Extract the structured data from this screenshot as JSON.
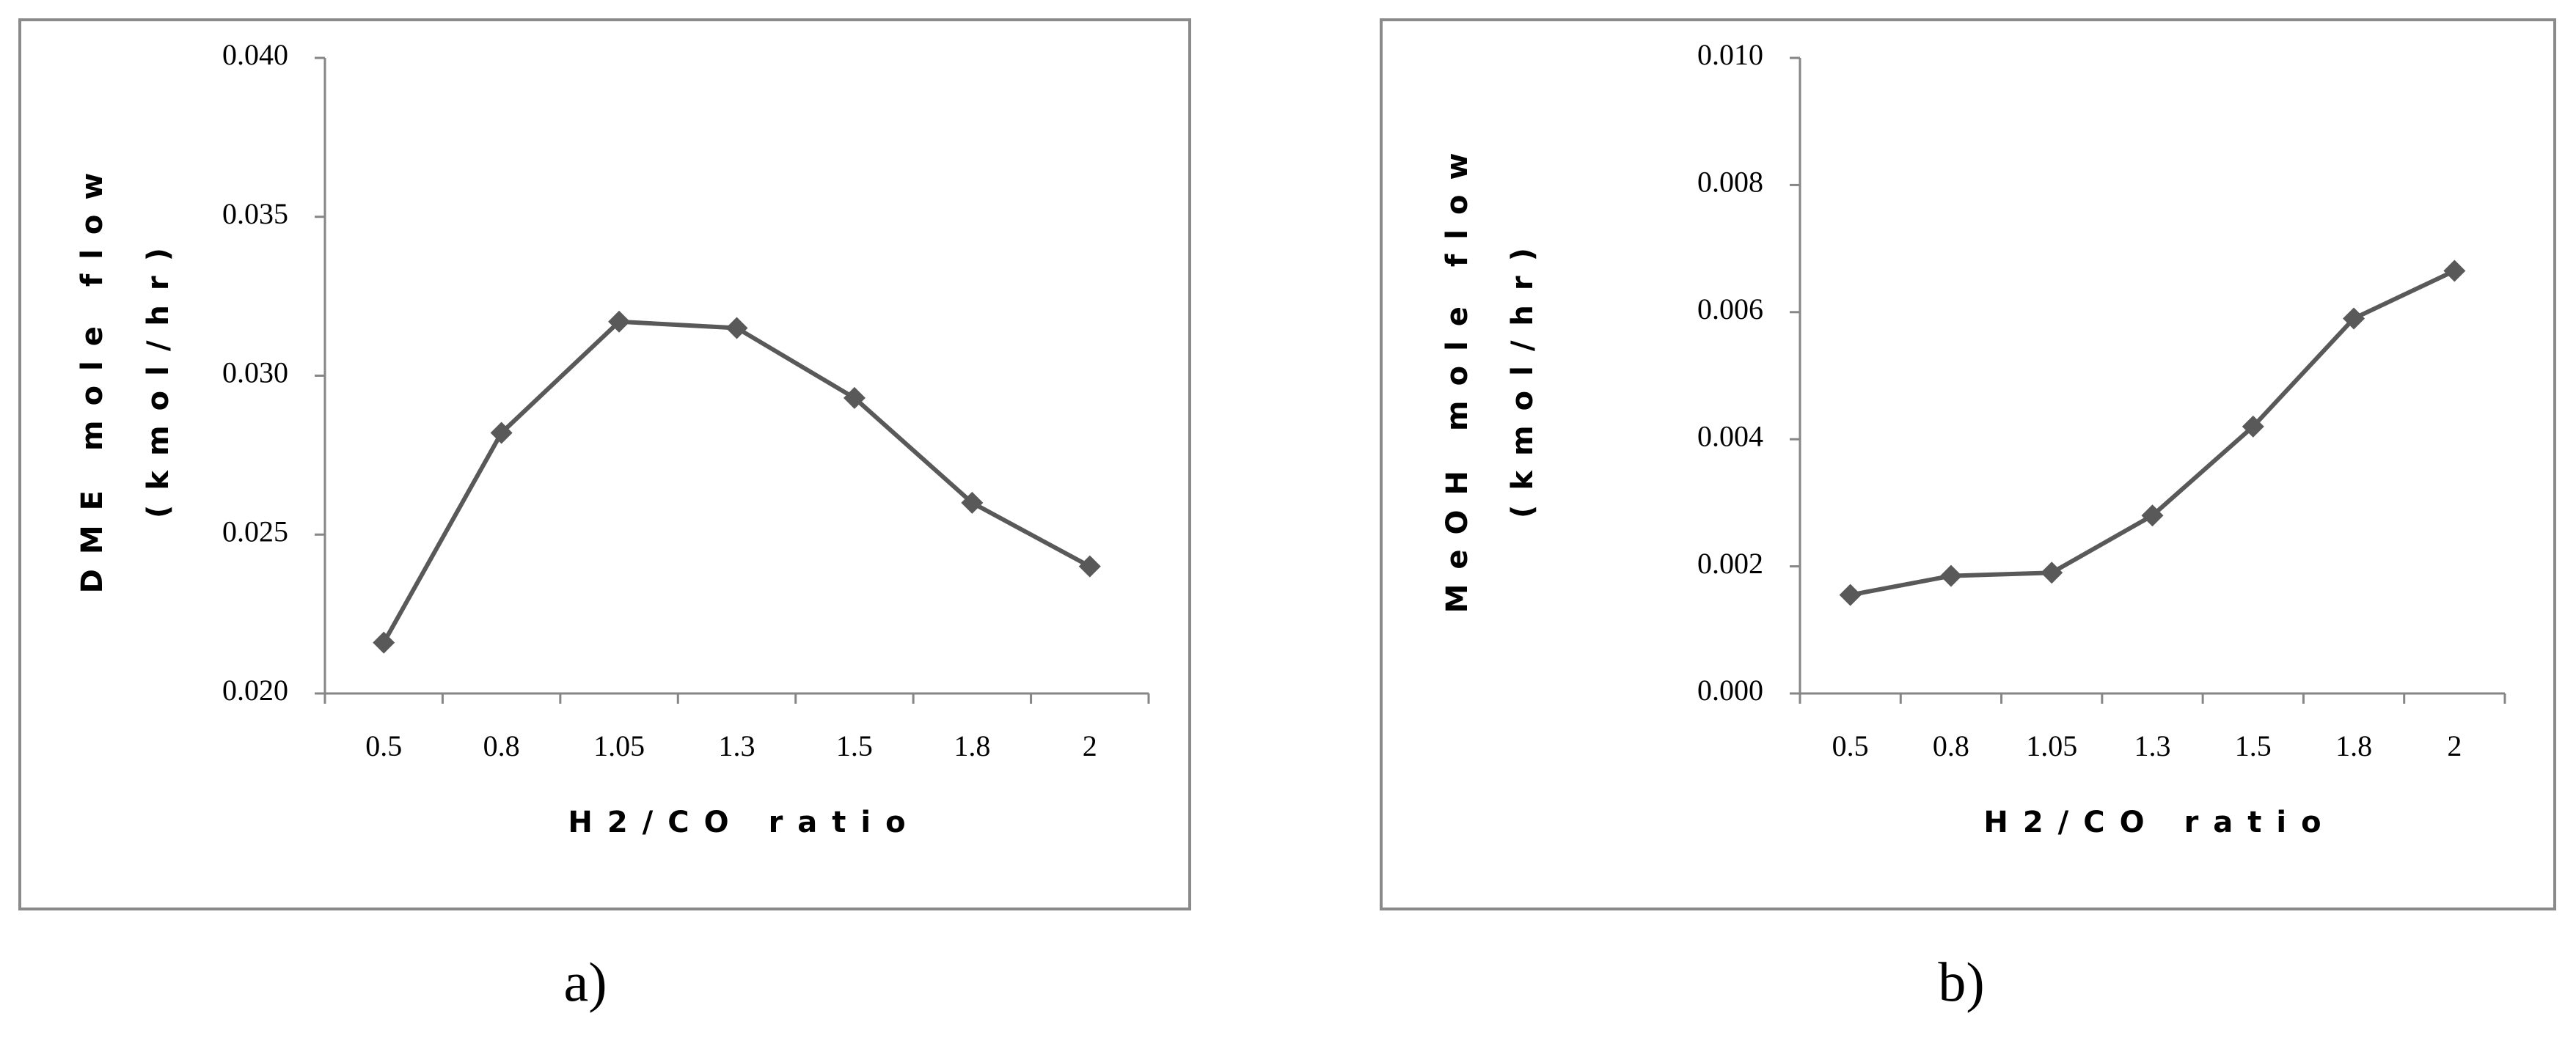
{
  "chart_data": [
    {
      "type": "line",
      "caption": "a)",
      "xlabel": "H2/CO ratio",
      "ylabel": [
        "DME mole flow",
        "(kmol/hr)"
      ],
      "categories": [
        "0.5",
        "0.8",
        "1.05",
        "1.3",
        "1.5",
        "1.8",
        "2"
      ],
      "values": [
        0.0216,
        0.0282,
        0.0317,
        0.0315,
        0.0293,
        0.026,
        0.024
      ],
      "color": "#595959",
      "ylim": [
        0.02,
        0.04
      ],
      "yticks": [
        {
          "value": 0.02,
          "label": "0.020"
        },
        {
          "value": 0.025,
          "label": "0.025"
        },
        {
          "value": 0.03,
          "label": "0.030"
        },
        {
          "value": 0.035,
          "label": "0.035"
        },
        {
          "value": 0.04,
          "label": "0.040"
        }
      ],
      "grid": false
    },
    {
      "type": "line",
      "caption": "b)",
      "xlabel": "H2/CO ratio",
      "ylabel": [
        "MeOH mole flow",
        "(kmol/hr)"
      ],
      "categories": [
        "0.5",
        "0.8",
        "1.05",
        "1.3",
        "1.5",
        "1.8",
        "2"
      ],
      "values": [
        0.00155,
        0.00185,
        0.0019,
        0.0028,
        0.0042,
        0.0059,
        0.00665
      ],
      "color": "#595959",
      "ylim": [
        0.0,
        0.01
      ],
      "yticks": [
        {
          "value": 0.0,
          "label": "0.000"
        },
        {
          "value": 0.002,
          "label": "0.002"
        },
        {
          "value": 0.004,
          "label": "0.004"
        },
        {
          "value": 0.006,
          "label": "0.006"
        },
        {
          "value": 0.008,
          "label": "0.008"
        },
        {
          "value": 0.01,
          "label": "0.010"
        }
      ],
      "grid": false
    }
  ]
}
